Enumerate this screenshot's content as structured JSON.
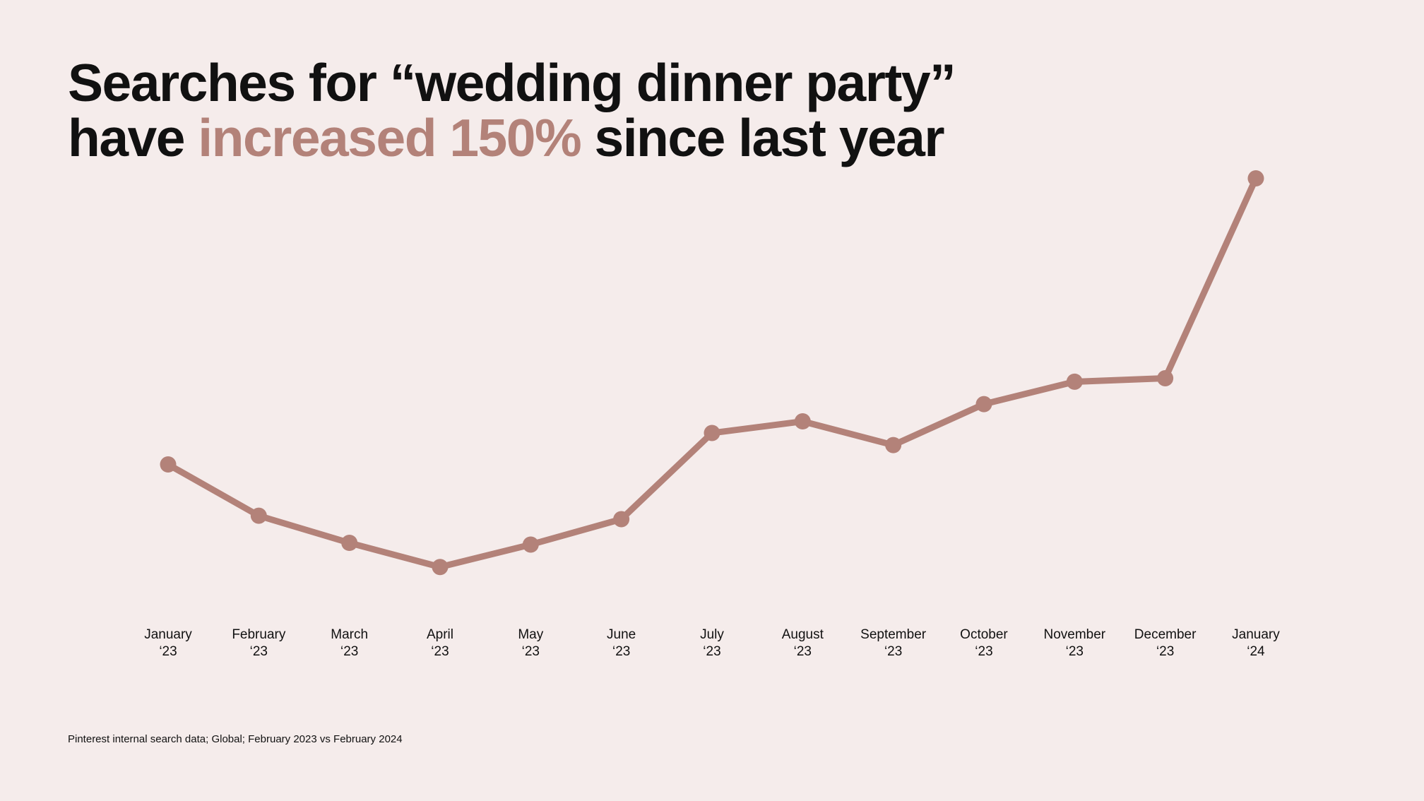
{
  "headline": {
    "line1": "Searches for “wedding dinner party”",
    "line2_before": "have ",
    "line2_accent": "increased 150%",
    "line2_after": " since last year"
  },
  "colors": {
    "background": "#f5eceb",
    "accent": "#b38279",
    "text": "#111111"
  },
  "chart_data": {
    "type": "line",
    "title": "Searches for “wedding dinner party” have increased 150% since last year",
    "categories": [
      [
        "January",
        "‘23"
      ],
      [
        "February",
        "‘23"
      ],
      [
        "March",
        "‘23"
      ],
      [
        "April",
        "‘23"
      ],
      [
        "May",
        "‘23"
      ],
      [
        "June",
        "‘23"
      ],
      [
        "July",
        "‘23"
      ],
      [
        "August",
        "‘23"
      ],
      [
        "September",
        "‘23"
      ],
      [
        "October",
        "‘23"
      ],
      [
        "November",
        "‘23"
      ],
      [
        "December",
        "‘23"
      ],
      [
        "January",
        "‘24"
      ]
    ],
    "series": [
      {
        "values": [
          28.6,
          16.7,
          10.4,
          4.8,
          10.0,
          15.9,
          35.9,
          38.6,
          33.1,
          42.6,
          47.8,
          48.6,
          95.0
        ]
      }
    ],
    "ylim": [
      0,
      100
    ],
    "y_axis_visible": false,
    "grid": false,
    "legend": "none",
    "markers": true,
    "color": "#b38279"
  },
  "footnote": "Pinterest internal search data; Global; February 2023 vs February 2024"
}
